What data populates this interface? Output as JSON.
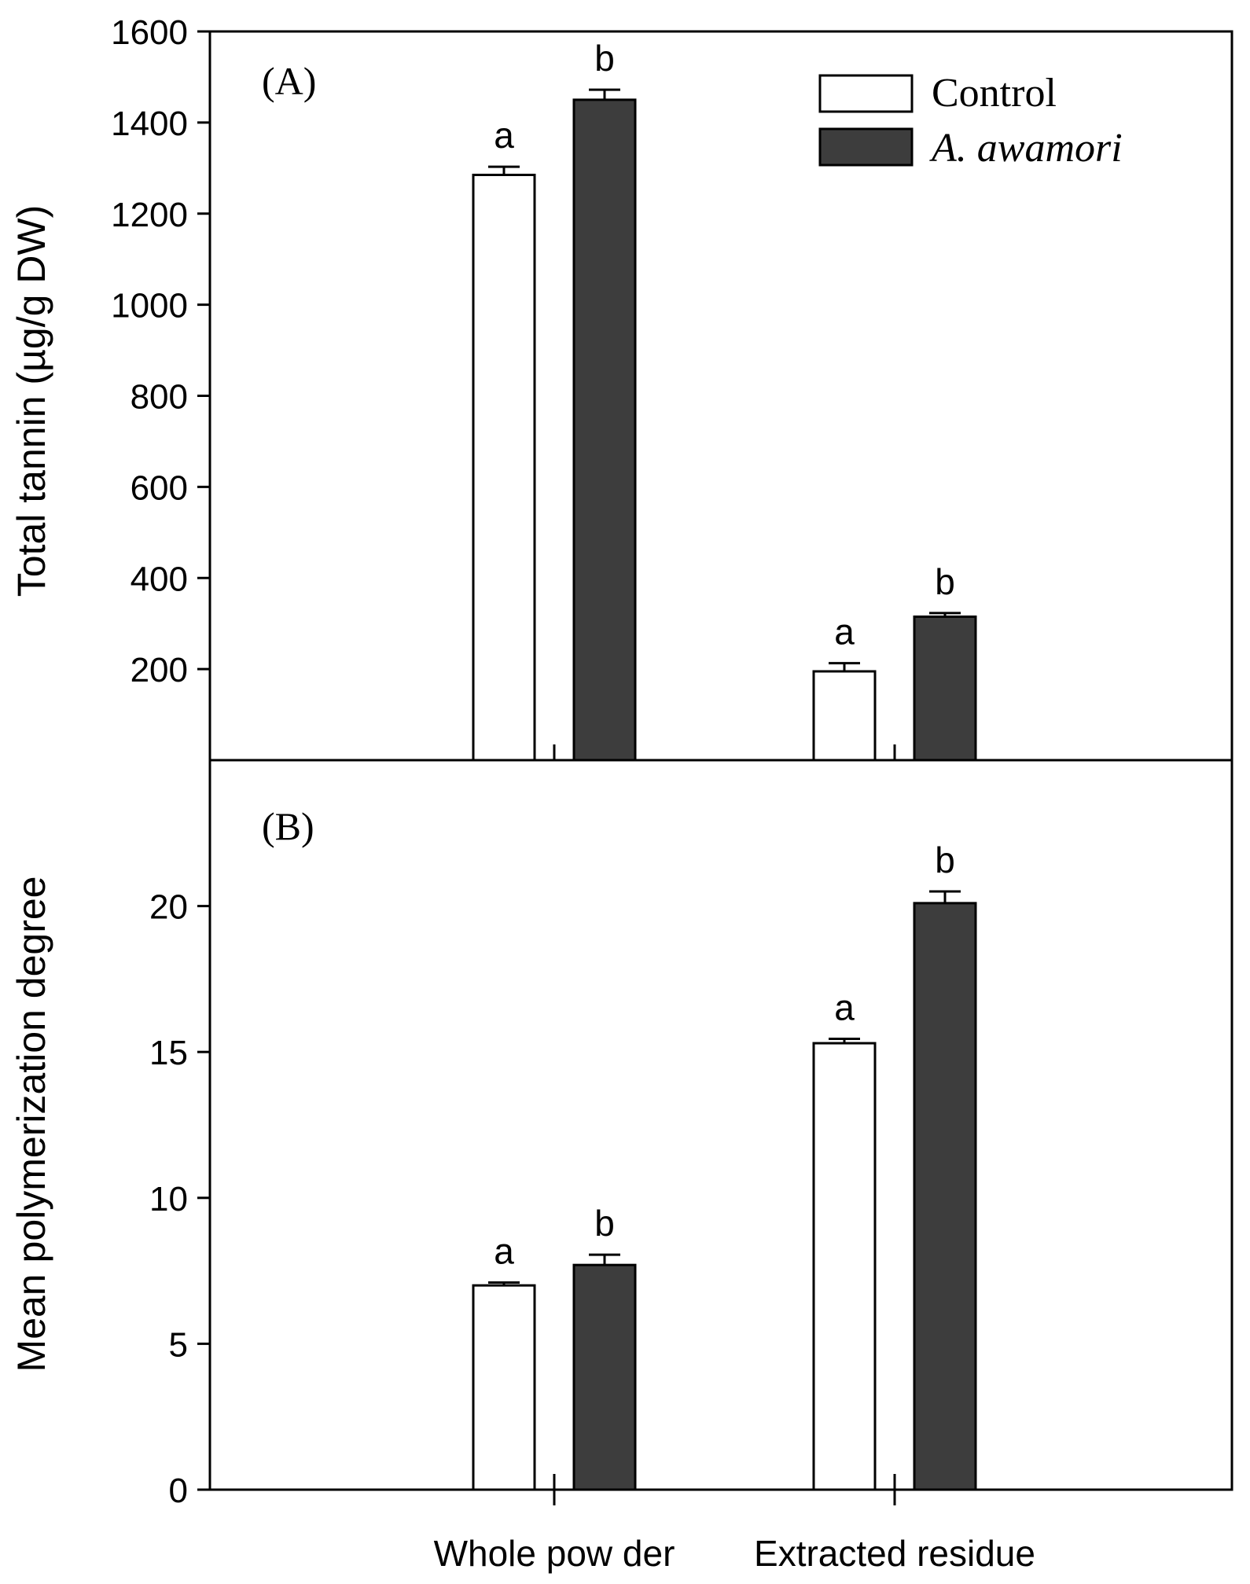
{
  "colors": {
    "control": "#ffffff",
    "awamori": "#3d3d3d",
    "axis": "#000000"
  },
  "legend": {
    "control_label": "Control",
    "awamori_label": "A. awamori"
  },
  "chart_data": [
    {
      "type": "bar",
      "panel_label": "(A)",
      "ylabel": "Total tannin (µg/g DW)",
      "ylim": [
        0,
        1600
      ],
      "yticks": [
        200,
        400,
        600,
        800,
        1000,
        1200,
        1400,
        1600
      ],
      "categories": [
        "Whole powder",
        "Extracted residue"
      ],
      "series": [
        {
          "name": "Control",
          "values": [
            1285,
            195
          ],
          "errors": [
            18,
            18
          ],
          "letters": [
            "a",
            "a"
          ]
        },
        {
          "name": "A. awamori",
          "values": [
            1450,
            315
          ],
          "errors": [
            22,
            8
          ],
          "letters": [
            "b",
            "b"
          ]
        }
      ]
    },
    {
      "type": "bar",
      "panel_label": "(B)",
      "ylabel": "Mean polymerization degree",
      "ylim": [
        0,
        25
      ],
      "yticks": [
        0,
        5,
        10,
        15,
        20
      ],
      "categories": [
        "Whole powder",
        "Extracted residue"
      ],
      "xlabels": [
        "Whole pow der",
        "Extracted residue"
      ],
      "series": [
        {
          "name": "Control",
          "values": [
            7.0,
            15.3
          ],
          "errors": [
            0.1,
            0.15
          ],
          "letters": [
            "a",
            "a"
          ]
        },
        {
          "name": "A. awamori",
          "values": [
            7.7,
            20.1
          ],
          "errors": [
            0.35,
            0.4
          ],
          "letters": [
            "b",
            "b"
          ]
        }
      ]
    }
  ]
}
